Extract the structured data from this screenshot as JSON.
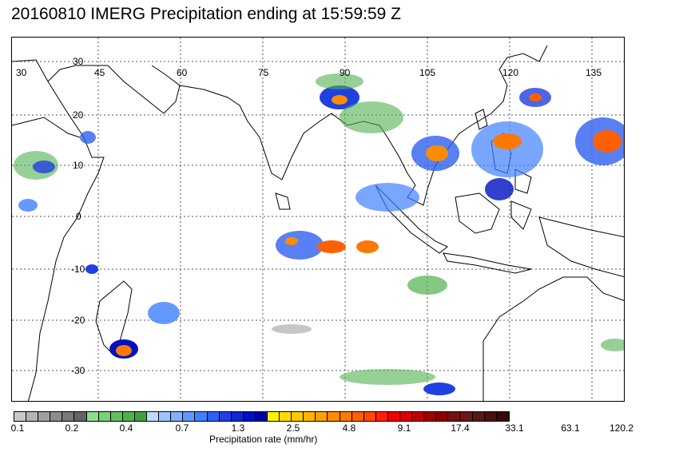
{
  "title": "20160810 IMERG Precipitation ending at 15:59:59 Z",
  "map": {
    "lon_labels": [
      "30",
      "45",
      "60",
      "75",
      "90",
      "105",
      "120",
      "135"
    ],
    "lat_labels": [
      "30",
      "20",
      "10",
      "0",
      "-10",
      "-20",
      "-30"
    ]
  },
  "colorbar": {
    "title": "Precipitation rate (mm/hr)",
    "labels": [
      "0.1",
      "0.2",
      "0.4",
      "0.7",
      "1.3",
      "2.5",
      "4.8",
      "9.1",
      "17.4",
      "33.1",
      "63.1",
      "120.2"
    ],
    "colors": [
      "#c8c8c8",
      "#b4b4b4",
      "#a0a0a0",
      "#8c8c8c",
      "#787878",
      "#646464",
      "#90dc90",
      "#78d078",
      "#60c060",
      "#50b050",
      "#40a040",
      "#c0d8ff",
      "#a0c4ff",
      "#80b0ff",
      "#6098ff",
      "#4080ff",
      "#3060f0",
      "#2040e0",
      "#1028d0",
      "#0010c0",
      "#0000a0",
      "#fff000",
      "#ffdc00",
      "#ffc800",
      "#ffb400",
      "#ffa000",
      "#ff8c00",
      "#ff7800",
      "#ff6000",
      "#ff4800",
      "#ff2000",
      "#f00000",
      "#dc0000",
      "#c00000",
      "#a00000",
      "#880000",
      "#781010",
      "#681818",
      "#581818",
      "#481010",
      "#380808"
    ]
  }
}
